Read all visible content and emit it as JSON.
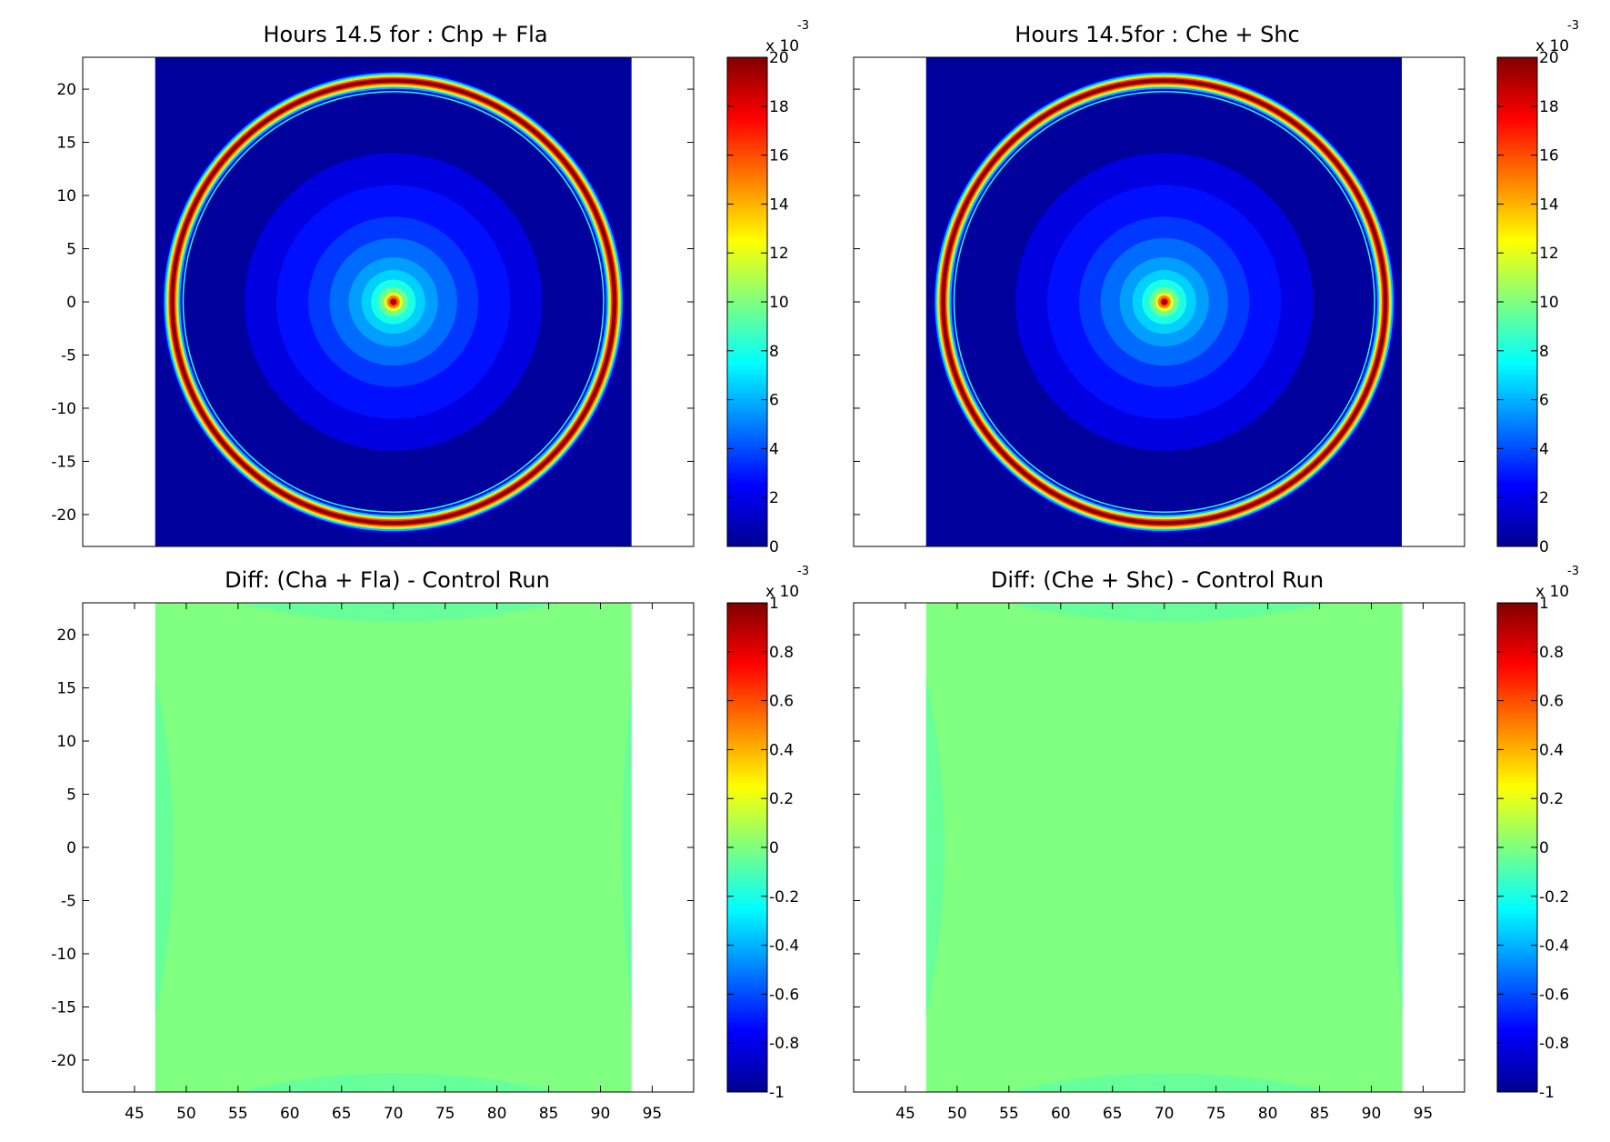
{
  "chart_data": [
    {
      "type": "heatmap",
      "title": "Hours 14.5 for : Chp + Fla",
      "xlabel": "",
      "ylabel": "",
      "xlim": [
        40,
        99
      ],
      "ylim": [
        -23,
        23
      ],
      "xticks": [],
      "yticks": [
        20,
        15,
        10,
        5,
        0,
        -5,
        -10,
        -15,
        -20
      ],
      "data_xrange": [
        47,
        93
      ],
      "field": {
        "kind": "ring",
        "center": [
          70,
          0
        ],
        "ring_radius": 20.8,
        "ring_peak": 20,
        "center_peak": 20,
        "background": 0.3
      },
      "colorbar": {
        "min": 0,
        "max": 20,
        "exponent_label": "x 10",
        "exponent_power": "-3",
        "ticks": [
          0,
          2,
          4,
          6,
          8,
          10,
          12,
          14,
          16,
          18,
          20
        ]
      },
      "grid": false,
      "legend": "none"
    },
    {
      "type": "heatmap",
      "title": "Hours 14.5for : Che + Shc",
      "xlabel": "",
      "ylabel": "",
      "xlim": [
        40,
        99
      ],
      "ylim": [
        -23,
        23
      ],
      "xticks": [],
      "yticks": [],
      "data_xrange": [
        47,
        93
      ],
      "field": {
        "kind": "ring",
        "center": [
          70,
          0
        ],
        "ring_radius": 20.8,
        "ring_peak": 20,
        "center_peak": 20,
        "background": 0.3
      },
      "colorbar": {
        "min": 0,
        "max": 20,
        "exponent_label": "x 10",
        "exponent_power": "-3",
        "ticks": [
          0,
          2,
          4,
          6,
          8,
          10,
          12,
          14,
          16,
          18,
          20
        ]
      },
      "grid": false,
      "legend": "none"
    },
    {
      "type": "heatmap",
      "title": "Diff: (Cha + Fla) - Control Run",
      "xlabel": "",
      "ylabel": "",
      "xlim": [
        40,
        99
      ],
      "ylim": [
        -23,
        23
      ],
      "xticks": [
        45,
        50,
        55,
        60,
        65,
        70,
        75,
        80,
        85,
        90,
        95
      ],
      "yticks": [
        20,
        15,
        10,
        5,
        0,
        -5,
        -10,
        -15,
        -20
      ],
      "data_xrange": [
        47,
        93
      ],
      "field": {
        "kind": "diff",
        "value": 0,
        "edge_value": -0.05
      },
      "colorbar": {
        "min": -1,
        "max": 1,
        "exponent_label": "x 10",
        "exponent_power": "-3",
        "ticks": [
          1,
          0.8,
          0.6,
          0.4,
          0.2,
          0,
          -0.2,
          -0.4,
          -0.6,
          -0.8,
          -1
        ]
      },
      "grid": false,
      "legend": "none"
    },
    {
      "type": "heatmap",
      "title": "Diff: (Che + Shc) - Control Run",
      "xlabel": "",
      "ylabel": "",
      "xlim": [
        40,
        99
      ],
      "ylim": [
        -23,
        23
      ],
      "xticks": [
        45,
        50,
        55,
        60,
        65,
        70,
        75,
        80,
        85,
        90,
        95
      ],
      "yticks": [],
      "data_xrange": [
        47,
        93
      ],
      "field": {
        "kind": "diff",
        "value": 0,
        "edge_value": -0.05
      },
      "colorbar": {
        "min": -1,
        "max": 1,
        "exponent_label": "x 10",
        "exponent_power": "-3",
        "ticks": [
          1,
          0.8,
          0.6,
          0.4,
          0.2,
          0,
          -0.2,
          -0.4,
          -0.6,
          -0.8,
          -1
        ]
      },
      "grid": false,
      "legend": "none"
    }
  ]
}
